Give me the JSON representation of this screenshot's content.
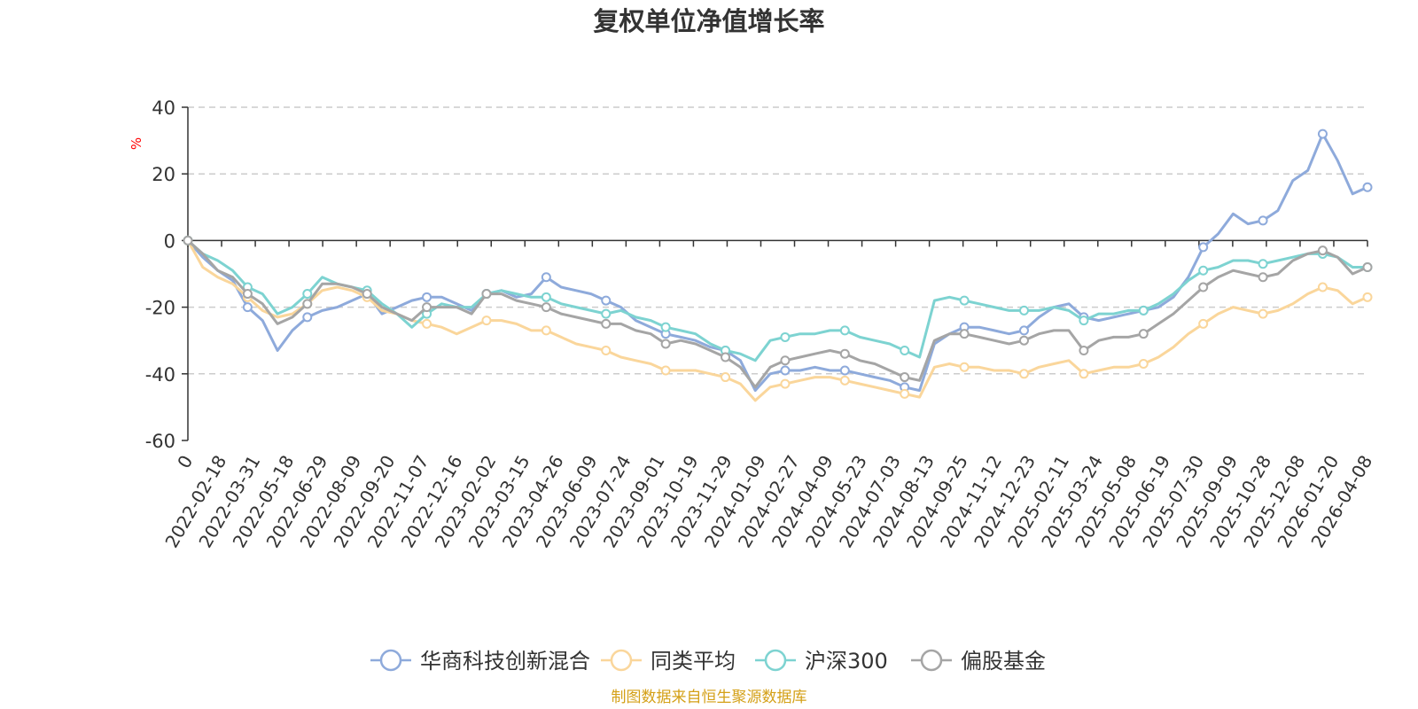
{
  "chart_data": {
    "type": "line",
    "title": "复权单位净值增长率",
    "ylabel": "%",
    "xlabel": "",
    "ylim": [
      -60,
      40
    ],
    "yticks": [
      40,
      20,
      0,
      -20,
      -40,
      -60
    ],
    "grid": true,
    "legend_position": "bottom-center",
    "source_note": "制图数据来自恒生聚源数据库",
    "x_labels": [
      "0",
      "2022-02-18",
      "2022-03-31",
      "2022-05-18",
      "2022-06-29",
      "2022-08-09",
      "2022-09-20",
      "2022-11-07",
      "2022-12-16",
      "2023-02-02",
      "2023-03-15",
      "2023-04-26",
      "2023-06-09",
      "2023-07-24",
      "2023-09-01",
      "2023-10-19",
      "2023-11-29",
      "2024-01-09",
      "2024-02-27",
      "2024-04-09",
      "2024-05-23",
      "2024-07-03",
      "2024-08-13",
      "2024-09-25",
      "2024-11-12",
      "2024-12-23",
      "2025-02-11",
      "2025-03-24",
      "2025-05-08",
      "2025-06-19",
      "2025-07-30",
      "2025-09-09",
      "2025-10-28",
      "2025-12-08",
      "2026-01-20",
      "2026-04-08"
    ],
    "x": [
      "2022-01-04",
      "2022-01-25",
      "2022-02-18",
      "2022-03-10",
      "2022-03-31",
      "2022-04-15",
      "2022-04-26",
      "2022-05-18",
      "2022-06-08",
      "2022-06-29",
      "2022-07-20",
      "2022-08-09",
      "2022-08-30",
      "2022-09-20",
      "2022-10-14",
      "2022-10-31",
      "2022-11-07",
      "2022-11-28",
      "2022-12-16",
      "2023-01-09",
      "2023-02-02",
      "2023-02-22",
      "2023-03-15",
      "2023-04-04",
      "2023-04-26",
      "2023-05-18",
      "2023-06-09",
      "2023-06-30",
      "2023-07-24",
      "2023-08-14",
      "2023-09-01",
      "2023-09-22",
      "2023-10-19",
      "2023-11-08",
      "2023-11-29",
      "2023-12-19",
      "2024-01-09",
      "2024-01-26",
      "2024-02-05",
      "2024-02-27",
      "2024-03-19",
      "2024-04-09",
      "2024-04-30",
      "2024-05-23",
      "2024-06-12",
      "2024-07-03",
      "2024-07-23",
      "2024-08-13",
      "2024-09-02",
      "2024-09-23",
      "2024-09-27",
      "2024-10-08",
      "2024-10-25",
      "2024-11-12",
      "2024-12-02",
      "2024-12-23",
      "2025-01-13",
      "2025-02-11",
      "2025-03-03",
      "2025-03-24",
      "2025-04-07",
      "2025-04-18",
      "2025-05-08",
      "2025-05-28",
      "2025-06-19",
      "2025-07-09",
      "2025-07-30",
      "2025-08-19",
      "2025-09-09",
      "2025-09-29",
      "2025-10-28",
      "2025-11-17",
      "2025-12-08",
      "2025-12-26",
      "2026-01-20",
      "2026-02-06",
      "2026-02-27",
      "2026-03-11",
      "2026-03-20",
      "2026-04-08"
    ],
    "series": [
      {
        "name": "华商科技创新混合",
        "color": "#8eaadb",
        "values": [
          0,
          -5,
          -9,
          -12,
          -20,
          -24,
          -33,
          -27,
          -23,
          -21,
          -20,
          -18,
          -16,
          -22,
          -20,
          -18,
          -17,
          -17,
          -19,
          -21,
          -16,
          -15,
          -17,
          -16,
          -11,
          -14,
          -15,
          -16,
          -18,
          -20,
          -24,
          -26,
          -28,
          -29,
          -30,
          -32,
          -33,
          -36,
          -45,
          -40,
          -39,
          -39,
          -38,
          -39,
          -39,
          -40,
          -41,
          -42,
          -44,
          -45,
          -31,
          -28,
          -26,
          -26,
          -27,
          -28,
          -27,
          -23,
          -20,
          -19,
          -23,
          -24,
          -23,
          -22,
          -21,
          -20,
          -17,
          -11,
          -2,
          2,
          8,
          5,
          6,
          9,
          18,
          21,
          32,
          24,
          14,
          16
        ]
      },
      {
        "name": "同类平均",
        "color": "#fad69b",
        "values": [
          0,
          -8,
          -11,
          -13,
          -17,
          -21,
          -23,
          -22,
          -19,
          -15,
          -14,
          -15,
          -17,
          -21,
          -22,
          -24,
          -25,
          -26,
          -28,
          -26,
          -24,
          -24,
          -25,
          -27,
          -27,
          -29,
          -31,
          -32,
          -33,
          -35,
          -36,
          -37,
          -39,
          -39,
          -39,
          -40,
          -41,
          -43,
          -48,
          -44,
          -43,
          -42,
          -41,
          -41,
          -42,
          -43,
          -44,
          -45,
          -46,
          -47,
          -38,
          -37,
          -38,
          -38,
          -39,
          -39,
          -40,
          -38,
          -37,
          -36,
          -40,
          -39,
          -38,
          -38,
          -37,
          -35,
          -32,
          -28,
          -25,
          -22,
          -20,
          -21,
          -22,
          -21,
          -19,
          -16,
          -14,
          -15,
          -19,
          -17
        ]
      },
      {
        "name": "沪深300",
        "color": "#7dd3d1",
        "values": [
          0,
          -4,
          -6,
          -9,
          -14,
          -16,
          -22,
          -20,
          -16,
          -11,
          -13,
          -14,
          -15,
          -19,
          -22,
          -26,
          -22,
          -19,
          -20,
          -20,
          -16,
          -15,
          -16,
          -17,
          -17,
          -19,
          -20,
          -21,
          -22,
          -21,
          -23,
          -24,
          -26,
          -27,
          -28,
          -31,
          -33,
          -34,
          -36,
          -30,
          -29,
          -28,
          -28,
          -27,
          -27,
          -29,
          -30,
          -31,
          -33,
          -35,
          -18,
          -17,
          -18,
          -19,
          -20,
          -21,
          -21,
          -21,
          -20,
          -21,
          -24,
          -22,
          -22,
          -21,
          -21,
          -19,
          -16,
          -12,
          -9,
          -8,
          -6,
          -6,
          -7,
          -6,
          -5,
          -4,
          -4,
          -5,
          -8,
          -8
        ]
      },
      {
        "name": "偏股基金",
        "color": "#a5a5a5",
        "values": [
          0,
          -4,
          -9,
          -11,
          -16,
          -19,
          -25,
          -23,
          -19,
          -13,
          -13,
          -14,
          -16,
          -20,
          -22,
          -24,
          -20,
          -20,
          -20,
          -22,
          -16,
          -16,
          -18,
          -19,
          -20,
          -22,
          -23,
          -24,
          -25,
          -25,
          -27,
          -28,
          -31,
          -30,
          -31,
          -33,
          -35,
          -38,
          -44,
          -38,
          -36,
          -35,
          -34,
          -33,
          -34,
          -36,
          -37,
          -39,
          -41,
          -42,
          -30,
          -28,
          -28,
          -29,
          -30,
          -31,
          -30,
          -28,
          -27,
          -27,
          -33,
          -30,
          -29,
          -29,
          -28,
          -25,
          -22,
          -18,
          -14,
          -11,
          -9,
          -10,
          -11,
          -10,
          -6,
          -4,
          -3,
          -5,
          -10,
          -8
        ]
      }
    ]
  }
}
